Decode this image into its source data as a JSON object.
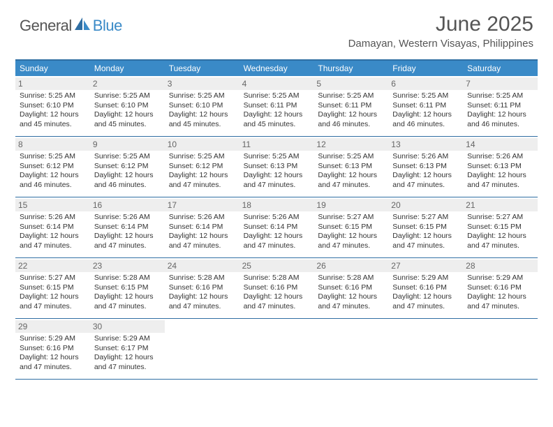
{
  "logo": {
    "general": "General",
    "blue": "Blue"
  },
  "title": "June 2025",
  "location": "Damayan, Western Visayas, Philippines",
  "colors": {
    "header_bg": "#3a8ac7",
    "border": "#2f6ea3",
    "daynum_bg": "#eeeeee",
    "text": "#555555"
  },
  "days_of_week": [
    "Sunday",
    "Monday",
    "Tuesday",
    "Wednesday",
    "Thursday",
    "Friday",
    "Saturday"
  ],
  "weeks": [
    [
      {
        "n": "1",
        "sr": "5:25 AM",
        "ss": "6:10 PM",
        "dl": "12 hours and 45 minutes."
      },
      {
        "n": "2",
        "sr": "5:25 AM",
        "ss": "6:10 PM",
        "dl": "12 hours and 45 minutes."
      },
      {
        "n": "3",
        "sr": "5:25 AM",
        "ss": "6:10 PM",
        "dl": "12 hours and 45 minutes."
      },
      {
        "n": "4",
        "sr": "5:25 AM",
        "ss": "6:11 PM",
        "dl": "12 hours and 45 minutes."
      },
      {
        "n": "5",
        "sr": "5:25 AM",
        "ss": "6:11 PM",
        "dl": "12 hours and 46 minutes."
      },
      {
        "n": "6",
        "sr": "5:25 AM",
        "ss": "6:11 PM",
        "dl": "12 hours and 46 minutes."
      },
      {
        "n": "7",
        "sr": "5:25 AM",
        "ss": "6:11 PM",
        "dl": "12 hours and 46 minutes."
      }
    ],
    [
      {
        "n": "8",
        "sr": "5:25 AM",
        "ss": "6:12 PM",
        "dl": "12 hours and 46 minutes."
      },
      {
        "n": "9",
        "sr": "5:25 AM",
        "ss": "6:12 PM",
        "dl": "12 hours and 46 minutes."
      },
      {
        "n": "10",
        "sr": "5:25 AM",
        "ss": "6:12 PM",
        "dl": "12 hours and 47 minutes."
      },
      {
        "n": "11",
        "sr": "5:25 AM",
        "ss": "6:13 PM",
        "dl": "12 hours and 47 minutes."
      },
      {
        "n": "12",
        "sr": "5:25 AM",
        "ss": "6:13 PM",
        "dl": "12 hours and 47 minutes."
      },
      {
        "n": "13",
        "sr": "5:26 AM",
        "ss": "6:13 PM",
        "dl": "12 hours and 47 minutes."
      },
      {
        "n": "14",
        "sr": "5:26 AM",
        "ss": "6:13 PM",
        "dl": "12 hours and 47 minutes."
      }
    ],
    [
      {
        "n": "15",
        "sr": "5:26 AM",
        "ss": "6:14 PM",
        "dl": "12 hours and 47 minutes."
      },
      {
        "n": "16",
        "sr": "5:26 AM",
        "ss": "6:14 PM",
        "dl": "12 hours and 47 minutes."
      },
      {
        "n": "17",
        "sr": "5:26 AM",
        "ss": "6:14 PM",
        "dl": "12 hours and 47 minutes."
      },
      {
        "n": "18",
        "sr": "5:26 AM",
        "ss": "6:14 PM",
        "dl": "12 hours and 47 minutes."
      },
      {
        "n": "19",
        "sr": "5:27 AM",
        "ss": "6:15 PM",
        "dl": "12 hours and 47 minutes."
      },
      {
        "n": "20",
        "sr": "5:27 AM",
        "ss": "6:15 PM",
        "dl": "12 hours and 47 minutes."
      },
      {
        "n": "21",
        "sr": "5:27 AM",
        "ss": "6:15 PM",
        "dl": "12 hours and 47 minutes."
      }
    ],
    [
      {
        "n": "22",
        "sr": "5:27 AM",
        "ss": "6:15 PM",
        "dl": "12 hours and 47 minutes."
      },
      {
        "n": "23",
        "sr": "5:28 AM",
        "ss": "6:15 PM",
        "dl": "12 hours and 47 minutes."
      },
      {
        "n": "24",
        "sr": "5:28 AM",
        "ss": "6:16 PM",
        "dl": "12 hours and 47 minutes."
      },
      {
        "n": "25",
        "sr": "5:28 AM",
        "ss": "6:16 PM",
        "dl": "12 hours and 47 minutes."
      },
      {
        "n": "26",
        "sr": "5:28 AM",
        "ss": "6:16 PM",
        "dl": "12 hours and 47 minutes."
      },
      {
        "n": "27",
        "sr": "5:29 AM",
        "ss": "6:16 PM",
        "dl": "12 hours and 47 minutes."
      },
      {
        "n": "28",
        "sr": "5:29 AM",
        "ss": "6:16 PM",
        "dl": "12 hours and 47 minutes."
      }
    ],
    [
      {
        "n": "29",
        "sr": "5:29 AM",
        "ss": "6:16 PM",
        "dl": "12 hours and 47 minutes."
      },
      {
        "n": "30",
        "sr": "5:29 AM",
        "ss": "6:17 PM",
        "dl": "12 hours and 47 minutes."
      },
      null,
      null,
      null,
      null,
      null
    ]
  ],
  "labels": {
    "sunrise": "Sunrise:",
    "sunset": "Sunset:",
    "daylight": "Daylight:"
  }
}
